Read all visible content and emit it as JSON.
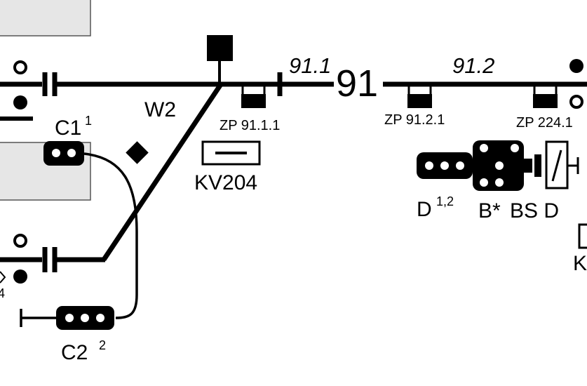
{
  "labels": {
    "section_91_1": "91.1",
    "station_91": "91",
    "section_91_2": "91.2",
    "switch_w2": "W2",
    "signal_c1": "C1",
    "signal_c1_sup": "1",
    "signal_c2": "C2",
    "signal_c2_sup": "2",
    "zp_91_1_1": "ZP 91.1.1",
    "zp_91_2_1": "ZP 91.2.1",
    "zp_224_1": "ZP 224.1",
    "kv204": "KV204",
    "signal_d": "D",
    "signal_d_sup": "1,2",
    "b_star": "B*",
    "bs_d": "BS D",
    "partial_k": "K",
    "partial_4": "4"
  },
  "colors": {
    "line": "#000000",
    "platform_fill": "#e6e6e6",
    "platform_stroke": "#555555"
  }
}
